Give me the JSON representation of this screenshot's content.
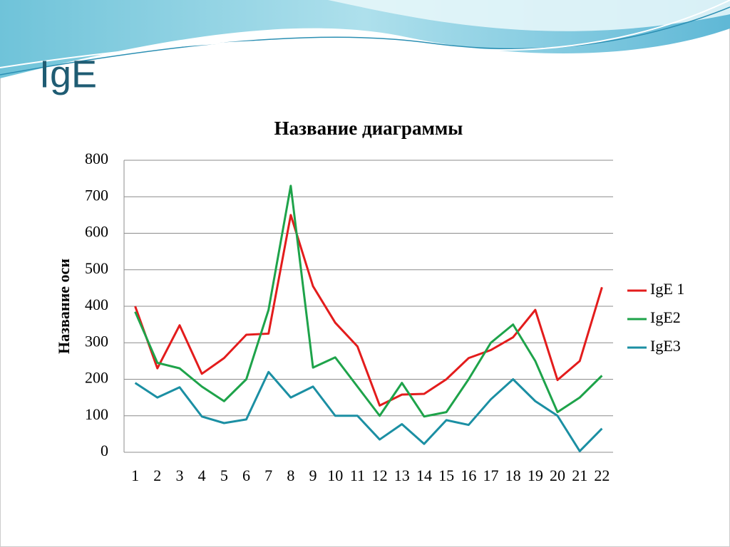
{
  "slide_title": "IgE",
  "chart_data": {
    "type": "line",
    "title": "Название диаграммы",
    "y_label": "Название оси",
    "categories": [
      "1",
      "2",
      "3",
      "4",
      "5",
      "6",
      "7",
      "8",
      "9",
      "10",
      "11",
      "12",
      "13",
      "14",
      "15",
      "16",
      "17",
      "18",
      "19",
      "20",
      "21",
      "22"
    ],
    "series": [
      {
        "name": "IgE 1",
        "color": "#e31c1c",
        "values": [
          400,
          230,
          348,
          215,
          258,
          322,
          325,
          650,
          455,
          355,
          290,
          128,
          158,
          160,
          200,
          258,
          280,
          315,
          390,
          198,
          250,
          452
        ]
      },
      {
        "name": "IgE2",
        "color": "#1ea34a",
        "values": [
          385,
          245,
          230,
          180,
          140,
          200,
          390,
          730,
          232,
          260,
          180,
          100,
          190,
          98,
          110,
          200,
          300,
          350,
          250,
          110,
          150,
          210
        ]
      },
      {
        "name": "IgE3",
        "color": "#1b8fa3",
        "values": [
          190,
          150,
          178,
          98,
          80,
          90,
          220,
          150,
          180,
          100,
          100,
          35,
          77,
          23,
          88,
          75,
          145,
          200,
          140,
          100,
          3,
          65
        ]
      }
    ],
    "ylim": [
      0,
      800
    ],
    "yticks": [
      0,
      100,
      200,
      300,
      400,
      500,
      600,
      700,
      800
    ],
    "grid": true,
    "legend": "right"
  }
}
